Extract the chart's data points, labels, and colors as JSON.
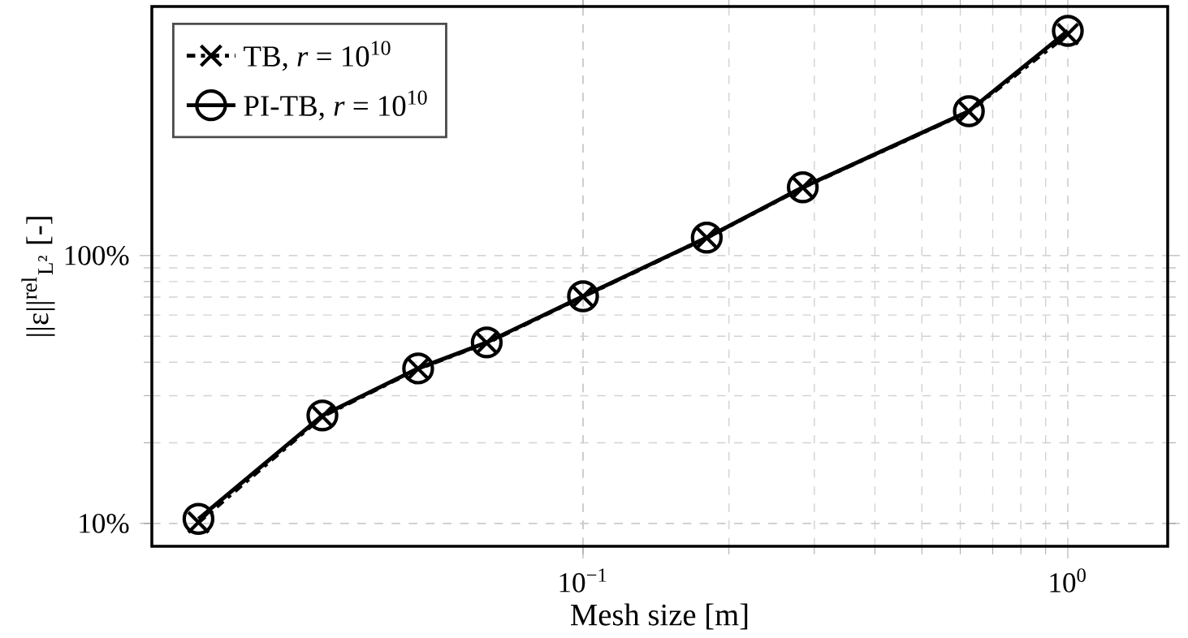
{
  "chart_data": {
    "type": "line",
    "xlabel": "Mesh size [m]",
    "ylabel": "||ε||$^{rel}$$_{L²}$ [-]",
    "log": "xy",
    "grid": true,
    "legend": "top left",
    "xlim": [
      0.0129,
      1.607
    ],
    "ylim": [
      8.22,
      851
    ],
    "xticks": [
      {
        "value": 0.1,
        "label": "10$^{−1}$"
      },
      {
        "value": 1,
        "label": "10$^{0}$"
      }
    ],
    "yticks": [
      {
        "value": 10,
        "label": "10%"
      },
      {
        "value": 100,
        "label": "100%"
      }
    ],
    "x": [
      0.0161,
      0.029,
      0.0457,
      0.0633,
      0.1,
      0.18,
      0.284,
      0.625,
      1.0
    ],
    "series": [
      {
        "name": "TB, *r* = 10$^{10}$",
        "color": "#000000",
        "marker": "cross",
        "line_style": "dashdotted",
        "values": [
          10.1,
          25.1,
          37.8,
          47.2,
          70.3,
          116.5,
          179.5,
          345,
          671
        ]
      },
      {
        "name": "PI-TB, *r* = 10$^{10}$",
        "color": "#000000",
        "marker": "circle",
        "line_style": "solid",
        "values": [
          10.4,
          25.3,
          37.9,
          47.4,
          70.5,
          116.7,
          179.8,
          346,
          690
        ]
      }
    ]
  }
}
